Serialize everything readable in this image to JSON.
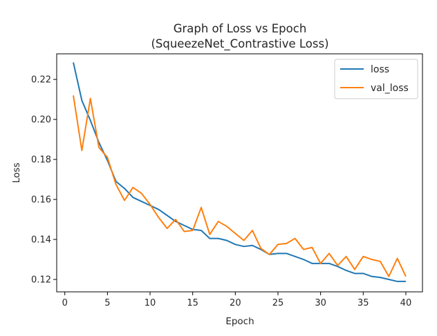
{
  "chart_data": {
    "type": "line",
    "title": "Graph of Loss vs Epoch",
    "subtitle": "(SqueezeNet_Contrastive Loss)",
    "xlabel": "Epoch",
    "ylabel": "Loss",
    "xlim": [
      -0.95,
      41.95
    ],
    "ylim": [
      0.1138,
      0.2328
    ],
    "xticks": [
      0,
      5,
      10,
      15,
      20,
      25,
      30,
      35,
      40
    ],
    "yticks": [
      0.12,
      0.14,
      0.16,
      0.18,
      0.2,
      0.22
    ],
    "ytick_labels": [
      "0.12",
      "0.14",
      "0.16",
      "0.18",
      "0.20",
      "0.22"
    ],
    "grid": false,
    "legend_position": "upper-right",
    "x": [
      1,
      2,
      3,
      4,
      5,
      6,
      7,
      8,
      9,
      10,
      11,
      12,
      13,
      14,
      15,
      16,
      17,
      18,
      19,
      20,
      21,
      22,
      23,
      24,
      25,
      26,
      27,
      28,
      29,
      30,
      31,
      32,
      33,
      34,
      35,
      36,
      37,
      38,
      39,
      40
    ],
    "series": [
      {
        "name": "loss",
        "color": "#1f77b4",
        "values": [
          0.2285,
          0.2095,
          0.1995,
          0.1885,
          0.1795,
          0.169,
          0.1655,
          0.161,
          0.159,
          0.157,
          0.155,
          0.152,
          0.149,
          0.147,
          0.145,
          0.1445,
          0.1405,
          0.1405,
          0.1395,
          0.1375,
          0.1365,
          0.137,
          0.135,
          0.1325,
          0.133,
          0.133,
          0.1315,
          0.13,
          0.128,
          0.128,
          0.128,
          0.1265,
          0.1245,
          0.123,
          0.123,
          0.1215,
          0.121,
          0.12,
          0.119,
          0.119
        ]
      },
      {
        "name": "val_loss",
        "color": "#ff7f0e",
        "values": [
          0.212,
          0.1845,
          0.2105,
          0.186,
          0.181,
          0.1675,
          0.1595,
          0.166,
          0.163,
          0.1575,
          0.151,
          0.1455,
          0.15,
          0.144,
          0.1445,
          0.156,
          0.1425,
          0.149,
          0.1465,
          0.143,
          0.1395,
          0.1445,
          0.1355,
          0.1325,
          0.1375,
          0.138,
          0.1405,
          0.135,
          0.136,
          0.128,
          0.133,
          0.127,
          0.1315,
          0.125,
          0.1315,
          0.13,
          0.129,
          0.1215,
          0.1305,
          0.1215
        ]
      }
    ]
  }
}
